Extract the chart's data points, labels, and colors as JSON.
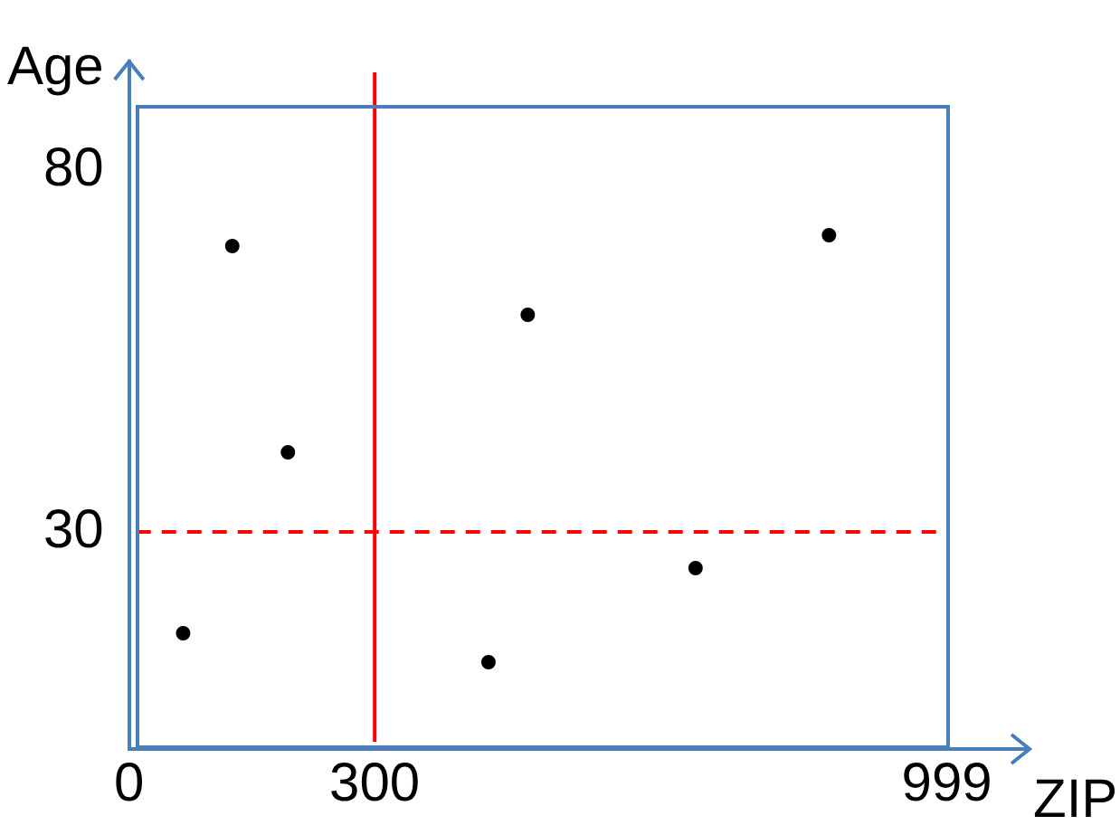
{
  "chart_data": {
    "type": "scatter",
    "xlabel": "ZIP",
    "ylabel": "Age",
    "x": [
      66,
      126,
      194,
      439,
      487,
      692,
      855
    ],
    "values": [
      16,
      69.5,
      41,
      12,
      60,
      25,
      71
    ],
    "color": "#000000",
    "marker": "circle",
    "xlim": [
      0,
      1100
    ],
    "xticks": [
      0,
      300,
      999
    ],
    "ylim": [
      0,
      95
    ],
    "yticks": [
      30,
      80
    ],
    "grid": false,
    "legend": false,
    "ref_lines": [
      {
        "axis": "x",
        "value": 300,
        "color": "#ff0000",
        "line_style": "solid"
      },
      {
        "axis": "y",
        "value": 30,
        "color": "#ff0000",
        "line_style": "dashed"
      }
    ]
  }
}
